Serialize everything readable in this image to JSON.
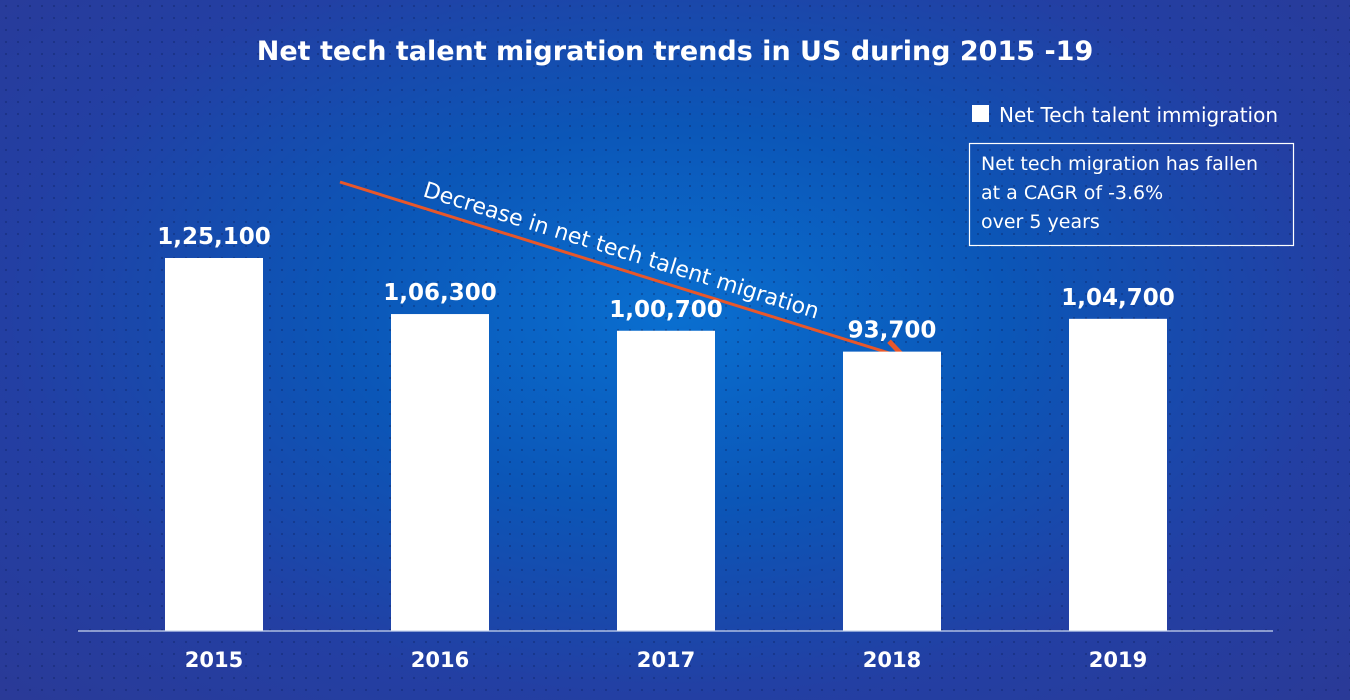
{
  "chart_data": {
    "type": "bar",
    "title": "Net tech talent migration trends in US during  2015 -19",
    "categories": [
      "2015",
      "2016",
      "2017",
      "2018",
      "2019"
    ],
    "series": [
      {
        "name": "Net Tech talent immigration",
        "values": [
          125100,
          106300,
          100700,
          93700,
          104700
        ],
        "labels": [
          "1,25,100",
          "1,06,300",
          "1,00,700",
          "93,700",
          "1,04,700"
        ]
      }
    ],
    "ylim": [
      0,
      135000
    ],
    "grid": false,
    "legend": "top-right",
    "annotations": {
      "arrow_text": "Decrease in net tech talent migration",
      "note_lines": [
        "Net tech migration has fallen",
        "at a CAGR of -3.6%",
        "over 5 years"
      ]
    },
    "colors": {
      "bar": "#ffffff",
      "arrow": "#e8572a",
      "background": "#0b56b7"
    }
  }
}
